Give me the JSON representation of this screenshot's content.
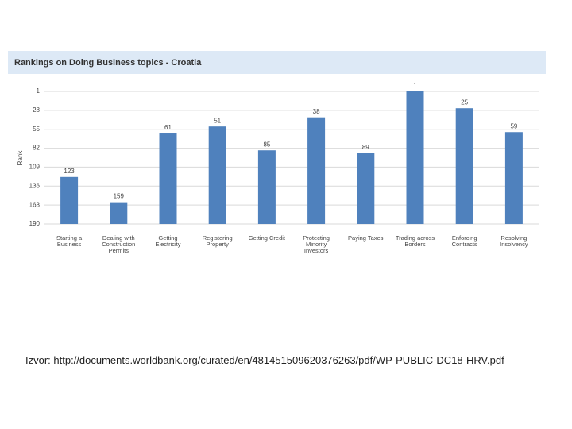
{
  "chart_data": {
    "type": "bar",
    "title": "Rankings on Doing Business topics - Croatia",
    "y_label": "Rank",
    "categories": [
      "Starting a Business",
      "Dealing with Construction Permits",
      "Getting Electricity",
      "Registering Property",
      "Getting Credit",
      "Protecting Minority Investors",
      "Paying Taxes",
      "Trading across Borders",
      "Enforcing Contracts",
      "Resolving Insolvency"
    ],
    "values": [
      123,
      159,
      61,
      51,
      85,
      38,
      89,
      1,
      25,
      59
    ],
    "color": "#4f81bd",
    "ylim": [
      190,
      1
    ],
    "yticks": [
      1,
      28,
      55,
      82,
      109,
      136,
      163,
      190
    ],
    "grid": true
  },
  "caption": "Izvor: http://documents.worldbank.org/curated/en/481451509620376263/pdf/WP-PUBLIC-DC18-HRV.pdf"
}
